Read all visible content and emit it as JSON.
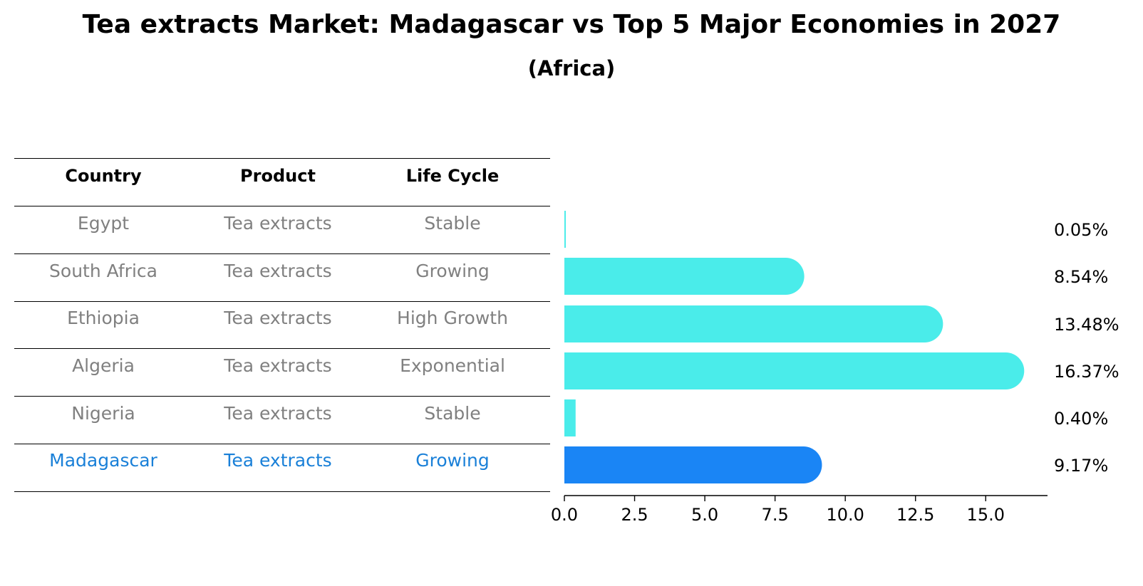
{
  "title": "Tea extracts Market: Madagascar vs Top 5 Major Economies in 2027",
  "subtitle": "(Africa)",
  "colors": {
    "bar": "#4AECEA",
    "highlight": "#1A85F5",
    "muted_text": "#808080",
    "highlight_text": "#1A80D8"
  },
  "table": {
    "headers": [
      "Country",
      "Product",
      "Life Cycle"
    ],
    "rows": [
      {
        "country": "Egypt",
        "product": "Tea extracts",
        "life_cycle": "Stable"
      },
      {
        "country": "South Africa",
        "product": "Tea extracts",
        "life_cycle": "Growing"
      },
      {
        "country": "Ethiopia",
        "product": "Tea extracts",
        "life_cycle": "High Growth"
      },
      {
        "country": "Algeria",
        "product": "Tea extracts",
        "life_cycle": "Exponential"
      },
      {
        "country": "Nigeria",
        "product": "Tea extracts",
        "life_cycle": "Stable"
      },
      {
        "country": "Madagascar",
        "product": "Tea extracts",
        "life_cycle": "Growing"
      }
    ]
  },
  "chart_data": {
    "type": "bar",
    "orientation": "horizontal",
    "categories": [
      "Egypt",
      "South Africa",
      "Ethiopia",
      "Algeria",
      "Nigeria",
      "Madagascar"
    ],
    "values": [
      0.05,
      8.54,
      13.48,
      16.37,
      0.4,
      9.17
    ],
    "value_labels": [
      "0.05%",
      "8.54%",
      "13.48%",
      "16.37%",
      "0.40%",
      "9.17%"
    ],
    "highlight": "Madagascar",
    "xlim": [
      0,
      17.2
    ],
    "xticks": [
      0.0,
      2.5,
      5.0,
      7.5,
      10.0,
      12.5,
      15.0
    ],
    "xtick_labels": [
      "0.0",
      "2.5",
      "5.0",
      "7.5",
      "10.0",
      "12.5",
      "15.0"
    ],
    "xlabel": "",
    "ylabel": ""
  }
}
